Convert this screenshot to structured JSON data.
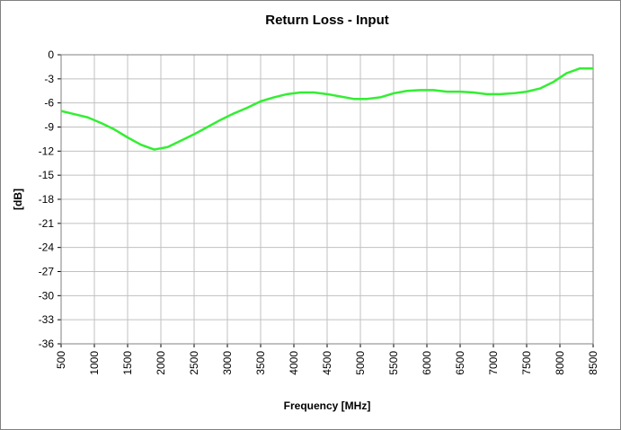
{
  "chart_data": {
    "type": "line",
    "title": "Return Loss - Input",
    "xlabel": "Frequency [MHz]",
    "ylabel": "[dB]",
    "x": [
      500,
      700,
      900,
      1100,
      1300,
      1500,
      1700,
      1900,
      2100,
      2300,
      2500,
      2700,
      2900,
      3100,
      3300,
      3500,
      3700,
      3900,
      4100,
      4300,
      4500,
      4700,
      4900,
      5100,
      5300,
      5500,
      5700,
      5900,
      6100,
      6300,
      6500,
      6700,
      6900,
      7100,
      7300,
      7500,
      7700,
      7900,
      8100,
      8300,
      8500
    ],
    "series": [
      {
        "color": "#33ee33",
        "values": [
          -7,
          -7.4,
          -7.8,
          -8.5,
          -9.3,
          -10.3,
          -11.2,
          -11.8,
          -11.5,
          -10.7,
          -9.9,
          -9.0,
          -8.1,
          -7.3,
          -6.6,
          -5.8,
          -5.3,
          -4.9,
          -4.7,
          -4.7,
          -4.9,
          -5.2,
          -5.5,
          -5.5,
          -5.3,
          -4.8,
          -4.5,
          -4.4,
          -4.4,
          -4.6,
          -4.6,
          -4.7,
          -4.9,
          -4.9,
          -4.8,
          -4.6,
          -4.2,
          -3.4,
          -2.3,
          -1.7,
          -1.7
        ]
      }
    ],
    "xlim": [
      500,
      8500
    ],
    "xticks": [
      500,
      1000,
      1500,
      2000,
      2500,
      3000,
      3500,
      4000,
      4500,
      5000,
      5500,
      6000,
      6500,
      7000,
      7500,
      8000,
      8500
    ],
    "ylim": [
      -36,
      0
    ],
    "yticks": [
      0,
      -3,
      -6,
      -9,
      -12,
      -15,
      -18,
      -21,
      -24,
      -27,
      -30,
      -33,
      -36
    ],
    "grid": true
  }
}
